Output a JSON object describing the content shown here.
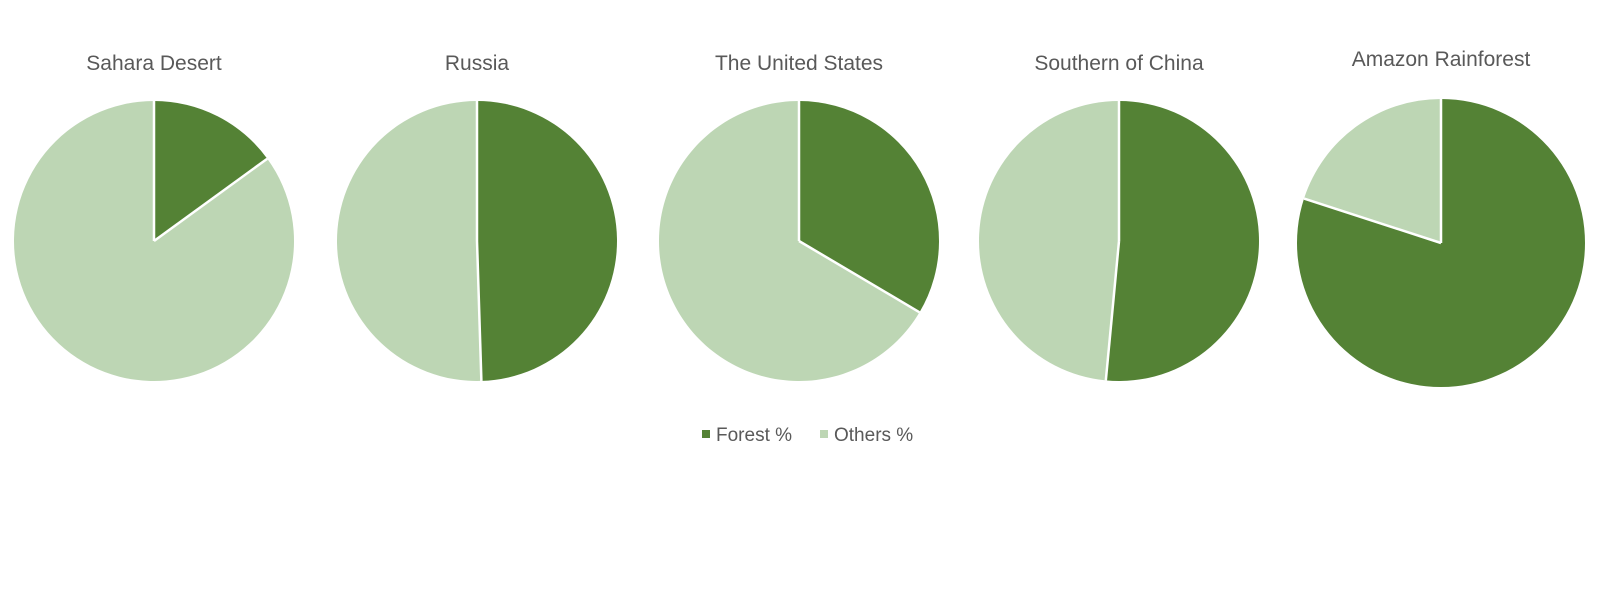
{
  "chart_data": {
    "type": "pie",
    "series_names": [
      "Forest %",
      "Others %"
    ],
    "legend": {
      "position": "bottom",
      "entries": [
        {
          "label": "Forest %",
          "color": "#548235"
        },
        {
          "label": "Others %",
          "color": "#BDD6B4"
        }
      ]
    },
    "charts": [
      {
        "title": "Sahara Desert",
        "values": [
          15,
          85
        ]
      },
      {
        "title": "Russia",
        "values": [
          49.5,
          50.5
        ]
      },
      {
        "title": "The United States",
        "values": [
          33.5,
          66.5
        ]
      },
      {
        "title": "Southern of China",
        "values": [
          51.5,
          48.5
        ]
      },
      {
        "title": "Amazon Rainforest",
        "values": [
          80,
          20
        ]
      }
    ],
    "colors": {
      "forest": "#548235",
      "others": "#BDD6B4",
      "separator": "#ffffff",
      "text": "#595959"
    }
  }
}
